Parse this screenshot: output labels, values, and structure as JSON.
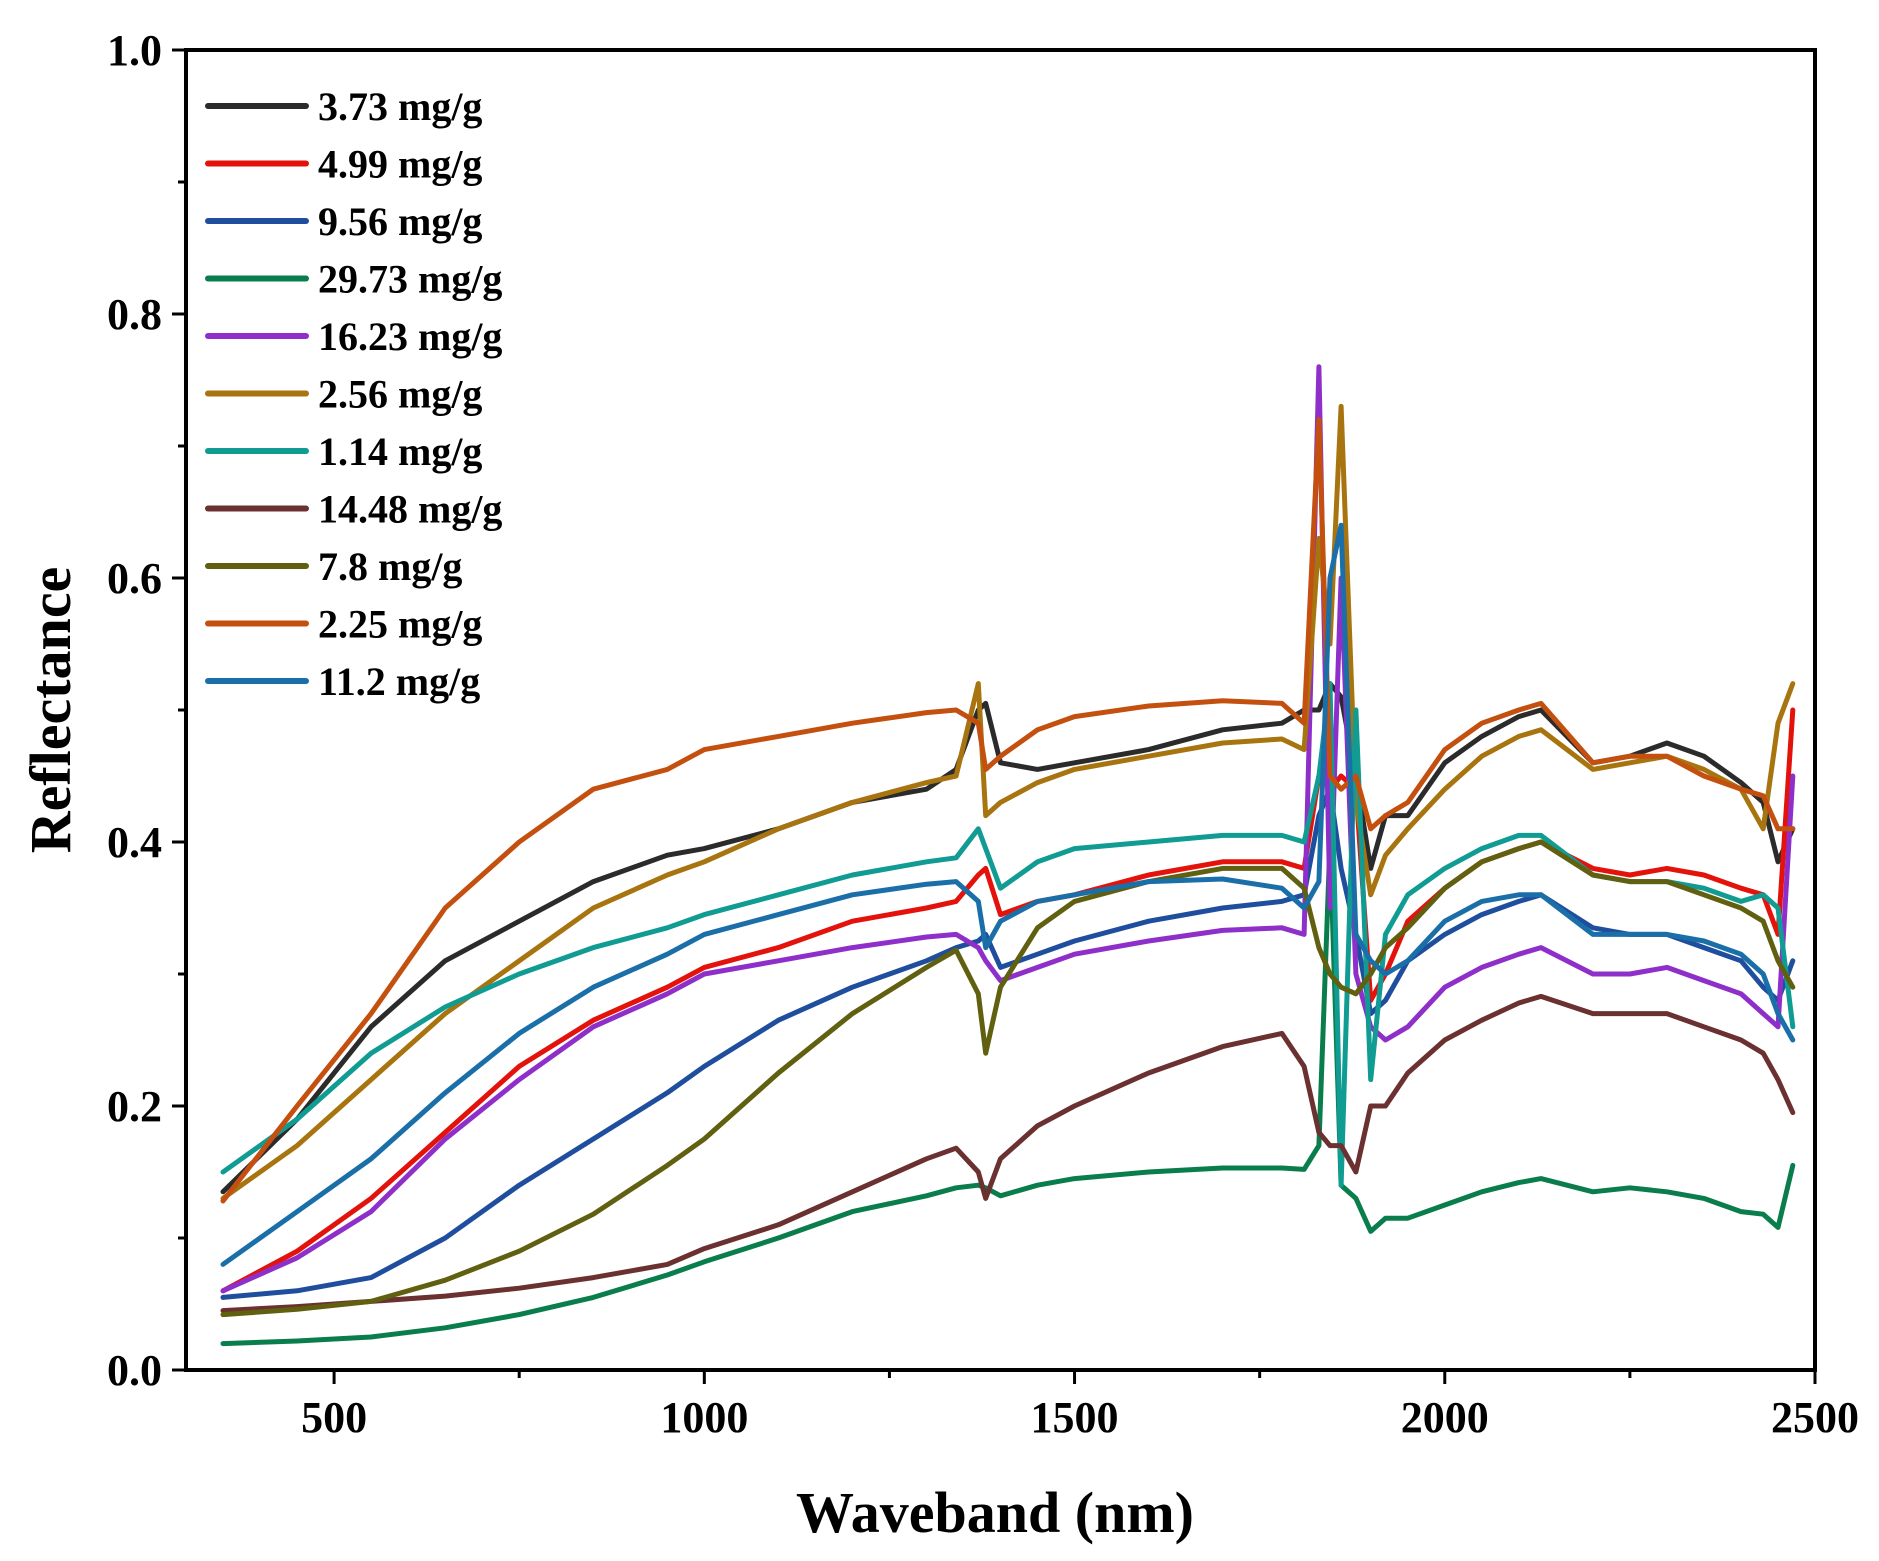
{
  "chart_data": {
    "type": "line",
    "title": "",
    "xlabel": "Waveband (nm)",
    "ylabel": "Reflectance",
    "xlim": [
      300,
      2500
    ],
    "ylim": [
      0.0,
      1.0
    ],
    "xticks": [
      "500",
      "1000",
      "1500",
      "2000",
      "2500"
    ],
    "xtick_values": [
      500,
      1000,
      1500,
      2000,
      2500
    ],
    "yticks": [
      "0.0",
      "0.2",
      "0.4",
      "0.6",
      "0.8",
      "1.0"
    ],
    "ytick_values": [
      0.0,
      0.2,
      0.4,
      0.6,
      0.8,
      1.0
    ],
    "legend_position": "top-left",
    "x": [
      350,
      450,
      550,
      650,
      750,
      850,
      950,
      1000,
      1100,
      1200,
      1300,
      1340,
      1370,
      1380,
      1400,
      1450,
      1500,
      1600,
      1700,
      1780,
      1810,
      1830,
      1845,
      1860,
      1880,
      1900,
      1920,
      1950,
      2000,
      2050,
      2100,
      2130,
      2200,
      2250,
      2300,
      2350,
      2400,
      2430,
      2450,
      2470
    ],
    "series": [
      {
        "name": "3.73 mg/g",
        "color": "#2b2b2b",
        "values": [
          0.135,
          0.19,
          0.26,
          0.31,
          0.34,
          0.37,
          0.39,
          0.395,
          0.41,
          0.43,
          0.44,
          0.455,
          0.5,
          0.505,
          0.46,
          0.455,
          0.46,
          0.47,
          0.485,
          0.49,
          0.5,
          0.5,
          0.52,
          0.51,
          0.45,
          0.38,
          0.42,
          0.42,
          0.46,
          0.48,
          0.495,
          0.5,
          0.46,
          0.465,
          0.475,
          0.465,
          0.445,
          0.43,
          0.385,
          0.41
        ]
      },
      {
        "name": "4.99 mg/g",
        "color": "#e3120b",
        "values": [
          0.06,
          0.09,
          0.13,
          0.18,
          0.23,
          0.265,
          0.29,
          0.305,
          0.32,
          0.34,
          0.35,
          0.355,
          0.375,
          0.38,
          0.345,
          0.355,
          0.36,
          0.375,
          0.385,
          0.385,
          0.38,
          0.45,
          0.44,
          0.45,
          0.44,
          0.28,
          0.3,
          0.34,
          0.365,
          0.385,
          0.395,
          0.4,
          0.38,
          0.375,
          0.38,
          0.375,
          0.365,
          0.36,
          0.33,
          0.5
        ]
      },
      {
        "name": "9.56 mg/g",
        "color": "#1f4e9e",
        "values": [
          0.055,
          0.06,
          0.07,
          0.1,
          0.14,
          0.175,
          0.21,
          0.23,
          0.265,
          0.29,
          0.31,
          0.32,
          0.325,
          0.33,
          0.305,
          0.315,
          0.325,
          0.34,
          0.35,
          0.355,
          0.36,
          0.42,
          0.44,
          0.38,
          0.33,
          0.27,
          0.28,
          0.31,
          0.33,
          0.345,
          0.355,
          0.36,
          0.335,
          0.33,
          0.33,
          0.32,
          0.31,
          0.29,
          0.28,
          0.31
        ]
      },
      {
        "name": "29.73 mg/g",
        "color": "#0a7d4d",
        "values": [
          0.02,
          0.022,
          0.025,
          0.032,
          0.042,
          0.055,
          0.072,
          0.082,
          0.1,
          0.12,
          0.132,
          0.138,
          0.14,
          0.138,
          0.132,
          0.14,
          0.145,
          0.15,
          0.153,
          0.153,
          0.152,
          0.17,
          0.4,
          0.14,
          0.13,
          0.105,
          0.115,
          0.115,
          0.125,
          0.135,
          0.142,
          0.145,
          0.135,
          0.138,
          0.135,
          0.13,
          0.12,
          0.118,
          0.108,
          0.155
        ]
      },
      {
        "name": "16.23 mg/g",
        "color": "#8f2fc9",
        "values": [
          0.06,
          0.085,
          0.12,
          0.175,
          0.22,
          0.26,
          0.285,
          0.3,
          0.31,
          0.32,
          0.328,
          0.33,
          0.32,
          0.31,
          0.295,
          0.305,
          0.315,
          0.325,
          0.333,
          0.335,
          0.33,
          0.76,
          0.35,
          0.6,
          0.3,
          0.26,
          0.25,
          0.26,
          0.29,
          0.305,
          0.315,
          0.32,
          0.3,
          0.3,
          0.305,
          0.295,
          0.285,
          0.27,
          0.26,
          0.45
        ]
      },
      {
        "name": "2.56 mg/g",
        "color": "#a87410",
        "values": [
          0.13,
          0.17,
          0.22,
          0.27,
          0.31,
          0.35,
          0.375,
          0.385,
          0.41,
          0.43,
          0.445,
          0.45,
          0.52,
          0.42,
          0.43,
          0.445,
          0.455,
          0.465,
          0.475,
          0.478,
          0.47,
          0.63,
          0.55,
          0.73,
          0.43,
          0.36,
          0.39,
          0.41,
          0.44,
          0.465,
          0.48,
          0.485,
          0.455,
          0.46,
          0.465,
          0.455,
          0.44,
          0.41,
          0.49,
          0.52
        ]
      },
      {
        "name": "1.14 mg/g",
        "color": "#109b93",
        "values": [
          0.15,
          0.19,
          0.24,
          0.275,
          0.3,
          0.32,
          0.335,
          0.345,
          0.36,
          0.375,
          0.385,
          0.388,
          0.41,
          0.395,
          0.365,
          0.385,
          0.395,
          0.4,
          0.405,
          0.405,
          0.4,
          0.45,
          0.52,
          0.14,
          0.5,
          0.22,
          0.33,
          0.36,
          0.38,
          0.395,
          0.405,
          0.405,
          0.375,
          0.37,
          0.37,
          0.365,
          0.355,
          0.36,
          0.35,
          0.26
        ]
      },
      {
        "name": "14.48 mg/g",
        "color": "#6b3131",
        "values": [
          0.045,
          0.048,
          0.052,
          0.056,
          0.062,
          0.07,
          0.08,
          0.092,
          0.11,
          0.135,
          0.16,
          0.168,
          0.15,
          0.13,
          0.16,
          0.185,
          0.2,
          0.225,
          0.245,
          0.255,
          0.23,
          0.18,
          0.17,
          0.17,
          0.15,
          0.2,
          0.2,
          0.225,
          0.25,
          0.265,
          0.278,
          0.283,
          0.27,
          0.27,
          0.27,
          0.26,
          0.25,
          0.24,
          0.22,
          0.195
        ]
      },
      {
        "name": "7.8 mg/g",
        "color": "#606010",
        "values": [
          0.042,
          0.046,
          0.052,
          0.068,
          0.09,
          0.118,
          0.155,
          0.175,
          0.225,
          0.27,
          0.305,
          0.318,
          0.285,
          0.24,
          0.29,
          0.335,
          0.355,
          0.37,
          0.38,
          0.38,
          0.365,
          0.32,
          0.3,
          0.29,
          0.285,
          0.3,
          0.32,
          0.335,
          0.365,
          0.385,
          0.395,
          0.4,
          0.375,
          0.37,
          0.37,
          0.36,
          0.35,
          0.34,
          0.31,
          0.29
        ]
      },
      {
        "name": "2.25 mg/g",
        "color": "#c4500f",
        "values": [
          0.128,
          0.2,
          0.27,
          0.35,
          0.4,
          0.44,
          0.455,
          0.47,
          0.48,
          0.49,
          0.498,
          0.5,
          0.49,
          0.455,
          0.465,
          0.485,
          0.495,
          0.503,
          0.507,
          0.505,
          0.49,
          0.72,
          0.45,
          0.44,
          0.45,
          0.41,
          0.42,
          0.43,
          0.47,
          0.49,
          0.5,
          0.505,
          0.46,
          0.465,
          0.465,
          0.45,
          0.44,
          0.435,
          0.41,
          0.41
        ]
      },
      {
        "name": "11.2 mg/g",
        "color": "#1a6fa8",
        "values": [
          0.08,
          0.12,
          0.16,
          0.21,
          0.255,
          0.29,
          0.315,
          0.33,
          0.345,
          0.36,
          0.368,
          0.37,
          0.355,
          0.32,
          0.34,
          0.355,
          0.36,
          0.37,
          0.372,
          0.365,
          0.35,
          0.37,
          0.6,
          0.64,
          0.33,
          0.31,
          0.3,
          0.31,
          0.34,
          0.355,
          0.36,
          0.36,
          0.33,
          0.33,
          0.33,
          0.325,
          0.315,
          0.3,
          0.27,
          0.25
        ]
      }
    ]
  }
}
